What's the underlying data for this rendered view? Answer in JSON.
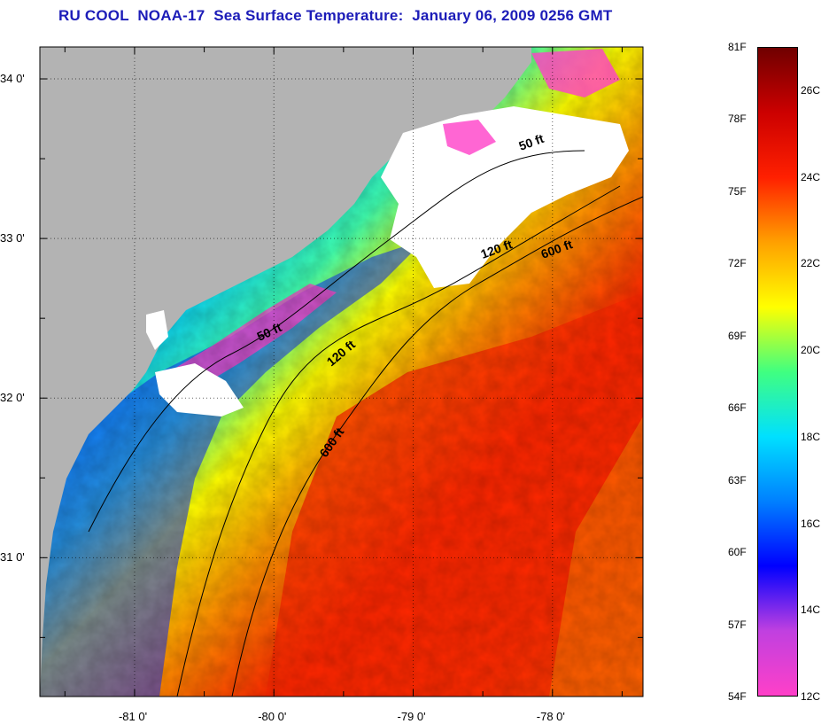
{
  "title": "RU COOL  NOAA-17  Sea Surface Temperature:  January 06, 2009 0256 GMT",
  "map": {
    "lat_ticks": [
      {
        "label": "34 0'",
        "lat": 34.0
      },
      {
        "label": "33 0'",
        "lat": 33.0
      },
      {
        "label": "32 0'",
        "lat": 32.0
      },
      {
        "label": "31 0'",
        "lat": 31.0
      }
    ],
    "lon_ticks": [
      {
        "label": "-81 0'",
        "lon": -81.0
      },
      {
        "label": "-80 0'",
        "lon": -80.0
      },
      {
        "label": "-79 0'",
        "lon": -79.0
      },
      {
        "label": "-78 0'",
        "lon": -78.0
      }
    ],
    "lat_range": [
      30.13,
      34.2
    ],
    "lon_range": [
      -81.68,
      -77.35
    ],
    "depth_contour_labels": [
      "50 ft",
      "120 ft",
      "600 ft",
      "50 ft",
      "120 ft",
      "600 ft"
    ],
    "colors": {
      "land": "#b3b3b3",
      "cloud": "#ffffff",
      "contour": "#000000"
    }
  },
  "colorbar": {
    "fahrenheit_labels": [
      "81F",
      "78F",
      "75F",
      "72F",
      "69F",
      "66F",
      "63F",
      "60F",
      "57F",
      "54F"
    ],
    "celsius_labels": [
      "26C",
      "24C",
      "22C",
      "20C",
      "18C",
      "16C",
      "14C",
      "12C"
    ],
    "colors": [
      "#ff40c8",
      "#c040e0",
      "#0000ff",
      "#0080ff",
      "#00e0ff",
      "#40ff80",
      "#ffff00",
      "#ffa000",
      "#ff2000",
      "#cc0000",
      "#700000"
    ]
  }
}
